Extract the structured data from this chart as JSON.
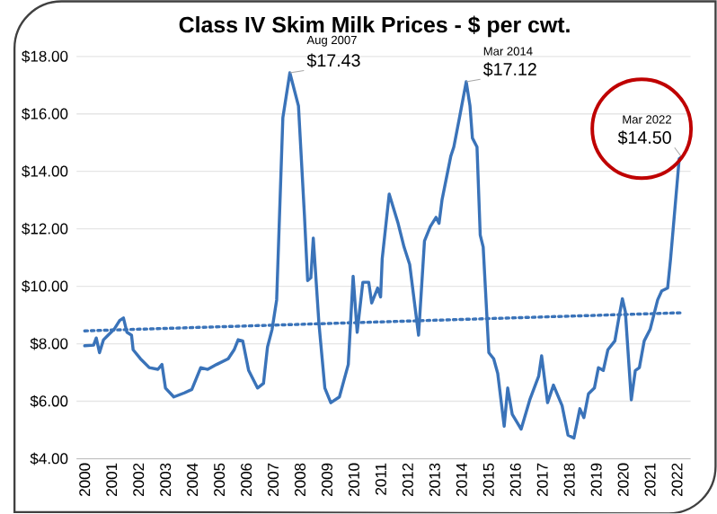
{
  "chart_data": {
    "type": "line",
    "title": "Class IV Skim Milk Prices - $ per cwt.",
    "xlim": [
      1999.7,
      2022.5
    ],
    "xticks": [
      2000,
      2001,
      2002,
      2003,
      2004,
      2005,
      2006,
      2007,
      2008,
      2009,
      2010,
      2011,
      2012,
      2013,
      2014,
      2015,
      2016,
      2017,
      2018,
      2019,
      2020,
      2021,
      2022
    ],
    "ylim": [
      4,
      18
    ],
    "yticks": [
      {
        "value": 4,
        "label": "$4.00"
      },
      {
        "value": 6,
        "label": "$6.00"
      },
      {
        "value": 8,
        "label": "$8.00"
      },
      {
        "value": 10,
        "label": "$10.00"
      },
      {
        "value": 12,
        "label": "$12.00"
      },
      {
        "value": 14,
        "label": "$14.00"
      },
      {
        "value": 16,
        "label": "$16.00"
      },
      {
        "value": 18,
        "label": "$18.00"
      }
    ],
    "grid": "y",
    "marker": "none",
    "series": [
      {
        "color": "#3a73b9",
        "line_style": "solid",
        "x": [
          2000.0,
          2000.33,
          2000.43,
          2000.55,
          2000.7,
          2000.87,
          2001.09,
          2001.3,
          2001.44,
          2001.57,
          2001.74,
          2001.8,
          2002.07,
          2002.4,
          2002.72,
          2002.87,
          2003.0,
          2003.31,
          2003.7,
          2003.98,
          2004.31,
          2004.57,
          2004.9,
          2005.33,
          2005.55,
          2005.7,
          2005.87,
          2006.09,
          2006.42,
          2006.64,
          2006.79,
          2006.96,
          2007.13,
          2007.36,
          2007.62,
          2007.94,
          2008.16,
          2008.28,
          2008.4,
          2008.49,
          2008.7,
          2008.92,
          2009.14,
          2009.46,
          2009.79,
          2009.97,
          2010.12,
          2010.33,
          2010.55,
          2010.66,
          2010.88,
          2010.99,
          2011.05,
          2011.31,
          2011.64,
          2011.86,
          2012.07,
          2012.4,
          2012.62,
          2012.84,
          2013.05,
          2013.16,
          2013.27,
          2013.6,
          2013.71,
          2013.92,
          2014.17,
          2014.31,
          2014.4,
          2014.57,
          2014.69,
          2014.8,
          2015.01,
          2015.19,
          2015.34,
          2015.58,
          2015.71,
          2015.88,
          2016.21,
          2016.53,
          2016.86,
          2016.97,
          2017.19,
          2017.41,
          2017.73,
          2017.95,
          2018.17,
          2018.39,
          2018.54,
          2018.71,
          2018.93,
          2019.08,
          2019.26,
          2019.43,
          2019.69,
          2019.84,
          2019.97,
          2020.08,
          2020.3,
          2020.45,
          2020.6,
          2020.78,
          2021.0,
          2021.28,
          2021.43,
          2021.65,
          2021.76,
          2022.08,
          2022.17
        ],
        "values": [
          7.93,
          7.95,
          8.2,
          7.69,
          8.14,
          8.3,
          8.5,
          8.81,
          8.9,
          8.4,
          8.3,
          7.79,
          7.48,
          7.17,
          7.11,
          7.28,
          6.46,
          6.15,
          6.29,
          6.41,
          7.17,
          7.11,
          7.28,
          7.48,
          7.79,
          8.14,
          8.1,
          7.07,
          6.46,
          6.62,
          7.89,
          8.5,
          9.53,
          15.87,
          17.43,
          16.28,
          12.5,
          10.2,
          10.3,
          11.68,
          8.71,
          6.46,
          5.95,
          6.15,
          7.28,
          10.35,
          8.4,
          10.14,
          10.14,
          9.42,
          9.94,
          9.63,
          10.96,
          13.21,
          12.19,
          11.37,
          10.76,
          8.3,
          11.58,
          12.09,
          12.4,
          12.19,
          13.0,
          14.54,
          14.85,
          15.87,
          17.12,
          16.28,
          15.16,
          14.85,
          11.78,
          11.37,
          7.69,
          7.48,
          6.97,
          5.13,
          6.46,
          5.54,
          5.03,
          6.05,
          6.87,
          7.58,
          5.95,
          6.56,
          5.85,
          4.82,
          4.72,
          5.74,
          5.43,
          6.26,
          6.46,
          7.17,
          7.07,
          7.79,
          8.1,
          8.91,
          9.57,
          9.12,
          6.05,
          7.07,
          7.17,
          8.1,
          8.5,
          9.53,
          9.84,
          9.94,
          10.96,
          14.44,
          14.5
        ]
      },
      {
        "type": "line",
        "color": "#3a73b9",
        "line_style": "dotted",
        "x": [
          2000.0,
          2022.17
        ],
        "values": [
          8.45,
          9.08
        ]
      }
    ],
    "annotations": [
      {
        "text": "Aug 2007",
        "x": 2007.62,
        "y": 17.43
      },
      {
        "text": "$17.43",
        "x": 2007.62,
        "y": 17.43
      },
      {
        "text": "Mar 2014",
        "x": 2014.17,
        "y": 17.12
      },
      {
        "text": "$17.12",
        "x": 2014.17,
        "y": 17.12
      },
      {
        "text": "Mar 2022",
        "x": 2022.17,
        "y": 14.5
      },
      {
        "text": "$14.50",
        "x": 2022.17,
        "y": 14.5
      }
    ]
  }
}
